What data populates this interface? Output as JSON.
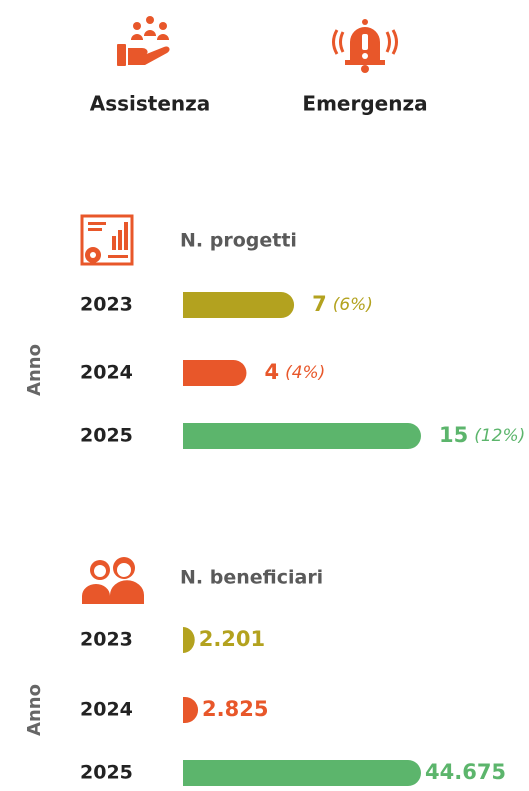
{
  "header": {
    "items": [
      "Assistenza",
      "Emergenza"
    ]
  },
  "chart_data": [
    {
      "type": "bar",
      "orientation": "horizontal",
      "title": "N. progetti",
      "axis_label": "Anno",
      "categories": [
        "2023",
        "2024",
        "2025"
      ],
      "values": [
        7,
        4,
        15
      ],
      "percent_labels": [
        "(6%)",
        "(4%)",
        "(12%)"
      ],
      "colors": [
        "#b3a21f",
        "#e8572a",
        "#5cb56c"
      ]
    },
    {
      "type": "bar",
      "orientation": "horizontal",
      "title": "N. beneficiari",
      "axis_label": "Anno",
      "categories": [
        "2023",
        "2024",
        "2025"
      ],
      "values": [
        2201,
        2825,
        44675
      ],
      "value_labels": [
        "2.201",
        "2.825",
        "44.675"
      ],
      "colors": [
        "#b3a21f",
        "#e8572a",
        "#5cb56c"
      ]
    }
  ]
}
